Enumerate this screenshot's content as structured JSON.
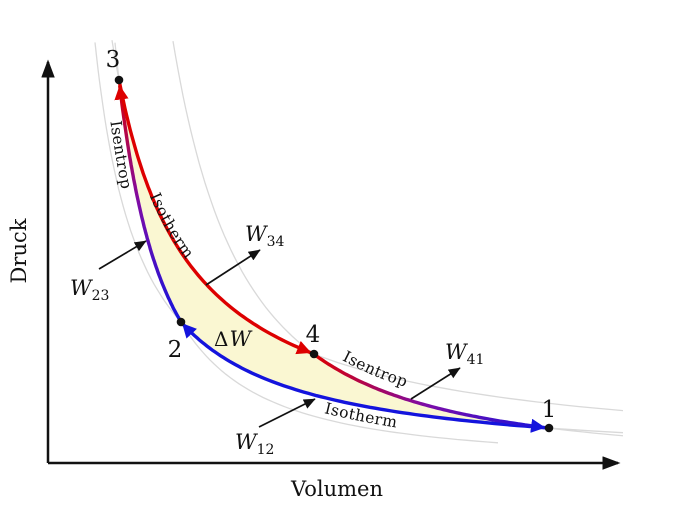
{
  "diagram": {
    "axes": {
      "x_label": "Volumen",
      "y_label": "Druck"
    },
    "state_points": {
      "p1": "1",
      "p2": "2",
      "p3": "3",
      "p4": "4"
    },
    "curve_labels": {
      "isotherm_hot": "Isotherm",
      "isotherm_cold": "Isotherm",
      "isentrope_23": "Isentrop",
      "isentrope_41": "Isentrop"
    },
    "work_labels": {
      "w12": {
        "base": "W",
        "sub": "12"
      },
      "w23": {
        "base": "W",
        "sub": "23"
      },
      "w34": {
        "base": "W",
        "sub": "34"
      },
      "w41": {
        "base": "W",
        "sub": "41"
      },
      "net": {
        "delta": "Δ",
        "base": "W"
      }
    },
    "colors": {
      "hot": "#dd0000",
      "cold": "#1414dd",
      "mid": "#7c0ca8",
      "area_fill": "#faf7d2",
      "background_curves": "#d9d9d9",
      "ink": "#111111"
    }
  }
}
